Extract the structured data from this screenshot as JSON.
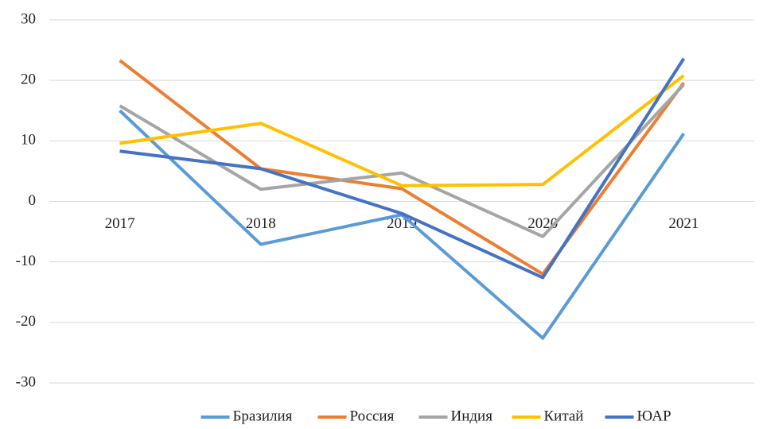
{
  "chart_data": {
    "type": "line",
    "categories": [
      "2017",
      "2018",
      "2019",
      "2020",
      "2021"
    ],
    "series": [
      {
        "name": "Бразилия",
        "color": "#5b9bd5",
        "values": [
          15,
          -7.1,
          -2.2,
          -22.6,
          11.2
        ]
      },
      {
        "name": "Россия",
        "color": "#ed7d31",
        "values": [
          23.3,
          5.4,
          2.1,
          -12,
          19.6
        ]
      },
      {
        "name": "Индия",
        "color": "#a5a5a5",
        "values": [
          15.8,
          2,
          4.7,
          -5.8,
          19.3
        ]
      },
      {
        "name": "Китай",
        "color": "#ffc000",
        "values": [
          9.6,
          12.9,
          2.6,
          2.8,
          20.8
        ]
      },
      {
        "name": "ЮАР",
        "color": "#4472c4",
        "values": [
          8.3,
          5.4,
          -2,
          -12.6,
          23.6
        ]
      }
    ],
    "ylim": [
      -30,
      30
    ],
    "yticks": [
      -30,
      -20,
      -10,
      0,
      10,
      20,
      30
    ],
    "grid": true,
    "legend": "bottom"
  }
}
